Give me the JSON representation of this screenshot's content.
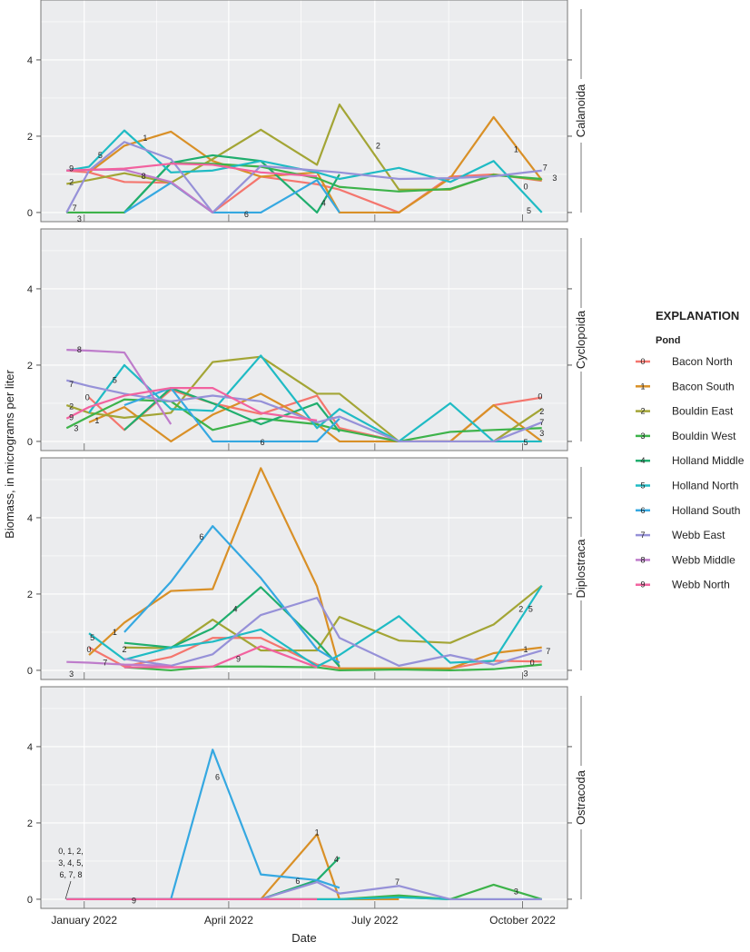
{
  "chart_data": {
    "type": "line",
    "xlabel": "Date",
    "ylabel": "Biomass, in micrograms per liter",
    "x_ticks": [
      {
        "date": "2022-01-01",
        "label": "January 2022"
      },
      {
        "date": "2022-04-01",
        "label": "April 2022"
      },
      {
        "date": "2022-07-01",
        "label": "July 2022"
      },
      {
        "date": "2022-10-01",
        "label": "October 2022"
      }
    ],
    "xlim": [
      "2021-12-05",
      "2022-10-29"
    ],
    "ylim": [
      -0.24,
      5.57
    ],
    "y_ticks": [
      0,
      2,
      4
    ],
    "grid": true,
    "legend": {
      "title": "EXPLANATION",
      "subtitle": "Pond",
      "placement": "right"
    },
    "dates": [
      "2021-12-21",
      "2022-01-04",
      "2022-01-26",
      "2022-02-24",
      "2022-03-22",
      "2022-04-21",
      "2022-05-26",
      "2022-06-09",
      "2022-07-16",
      "2022-08-17",
      "2022-09-13",
      "2022-10-13"
    ],
    "series": [
      {
        "id": "0",
        "name": "Bacon North",
        "color": "#F4766E"
      },
      {
        "id": "1",
        "name": "Bacon South",
        "color": "#D99027"
      },
      {
        "id": "2",
        "name": "Bouldin East",
        "color": "#A3A535"
      },
      {
        "id": "3",
        "name": "Bouldin West",
        "color": "#3DB34A"
      },
      {
        "id": "4",
        "name": "Holland Middle",
        "color": "#20AE6E"
      },
      {
        "id": "5",
        "name": "Holland North",
        "color": "#1FBBC4"
      },
      {
        "id": "6",
        "name": "Holland South",
        "color": "#35A8E1"
      },
      {
        "id": "7",
        "name": "Webb East",
        "color": "#9691D8"
      },
      {
        "id": "8",
        "name": "Webb Middle",
        "color": "#BE7CCB"
      },
      {
        "id": "9",
        "name": "Webb North",
        "color": "#F2629F"
      }
    ],
    "panels": [
      {
        "name": "Calanoida",
        "values": [
          [
            1.1,
            1.05,
            0.8,
            0.78,
            0,
            0.94,
            0.74,
            0.6,
            0,
            0.94,
            1.0,
            0.83
          ],
          [
            null,
            1.05,
            1.75,
            2.12,
            1.35,
            0.94,
            1.05,
            0,
            0,
            0.9,
            2.5,
            0.85
          ],
          [
            0.75,
            0.85,
            1.03,
            0.78,
            1.4,
            2.17,
            1.25,
            2.83,
            0.6,
            0.6,
            1.0,
            0.85
          ],
          [
            0,
            0,
            0,
            1.3,
            1.28,
            1.2,
            0.9,
            0.67,
            0.55,
            0.62,
            0.98,
            0.88
          ],
          [
            null,
            null,
            0,
            1.3,
            1.5,
            1.35,
            0,
            1.0,
            null,
            null,
            null,
            null
          ],
          [
            1.1,
            1.2,
            2.15,
            1.05,
            1.1,
            1.35,
            1.05,
            0.88,
            1.17,
            0.8,
            1.35,
            0
          ],
          [
            null,
            null,
            0,
            0.78,
            0,
            0,
            0.85,
            0,
            null,
            null,
            null,
            null
          ],
          [
            0,
            1.1,
            1.85,
            1.4,
            0,
            1.22,
            1.1,
            1.05,
            0.88,
            0.9,
            0.95,
            1.1
          ],
          [
            1.1,
            1.12,
            1.12,
            0.8,
            0,
            null,
            null,
            null,
            null,
            null,
            null,
            null
          ],
          [
            1.1,
            1.12,
            1.15,
            1.28,
            1.25,
            1.05,
            0.95,
            null,
            null,
            null,
            null,
            null
          ]
        ],
        "labels": [
          {
            "s": "9",
            "d": "2021-12-24",
            "v": 1.15
          },
          {
            "s": "2",
            "d": "2021-12-24",
            "v": 0.8
          },
          {
            "s": "7",
            "d": "2021-12-26",
            "v": 0.12
          },
          {
            "s": "3",
            "d": "2021-12-29",
            "v": -0.06
          },
          {
            "s": "5",
            "d": "2022-01-11",
            "v": 1.5
          },
          {
            "s": "1",
            "d": "2022-02-08",
            "v": 1.95
          },
          {
            "s": "8",
            "d": "2022-02-07",
            "v": 0.95
          },
          {
            "s": "6",
            "d": "2022-04-12",
            "v": -0.05
          },
          {
            "s": "4",
            "d": "2022-05-30",
            "v": 0.25
          },
          {
            "s": "2",
            "d": "2022-07-03",
            "v": 1.75
          },
          {
            "s": "1",
            "d": "2022-09-27",
            "v": 1.65
          },
          {
            "s": "0",
            "d": "2022-10-03",
            "v": 0.68
          },
          {
            "s": "5",
            "d": "2022-10-05",
            "v": 0.05
          },
          {
            "s": "7",
            "d": "2022-10-15",
            "v": 1.18
          },
          {
            "s": "3",
            "d": "2022-10-21",
            "v": 0.9
          }
        ]
      },
      {
        "name": "Cyclopoida",
        "values": [
          [
            null,
            1.15,
            0.3,
            1.35,
            1.0,
            0.72,
            1.2,
            0.35,
            0,
            0,
            0.95,
            1.15
          ],
          [
            null,
            0.5,
            0.9,
            0,
            0.7,
            1.25,
            0.45,
            0,
            0,
            0,
            0.95,
            0
          ],
          [
            0.95,
            0.75,
            0.62,
            0.75,
            2.08,
            2.22,
            1.25,
            1.25,
            0,
            0,
            0,
            0.85
          ],
          [
            0.35,
            0.65,
            1.1,
            1.05,
            0.3,
            0.6,
            0.45,
            0.3,
            0,
            0.25,
            0.3,
            0.35
          ],
          [
            null,
            null,
            0.3,
            1.4,
            1.0,
            0.45,
            1.0,
            0.25,
            null,
            null,
            null,
            null
          ],
          [
            null,
            0.75,
            2.0,
            0.85,
            0.8,
            2.25,
            0.35,
            0.85,
            0,
            1.0,
            0,
            0
          ],
          [
            null,
            null,
            0.95,
            1.4,
            0,
            0,
            0,
            0.6,
            null,
            null,
            null,
            null
          ],
          [
            1.6,
            1.45,
            1.25,
            1.05,
            1.2,
            1.05,
            0.5,
            0.65,
            0,
            0,
            0,
            0.5
          ],
          [
            2.4,
            2.38,
            2.33,
            0.45,
            null,
            null,
            null,
            null,
            null,
            null,
            null,
            null
          ],
          [
            0.6,
            0.9,
            1.2,
            1.4,
            1.4,
            0.75,
            0.55,
            null,
            null,
            null,
            null,
            null
          ]
        ],
        "labels": [
          {
            "s": "8",
            "d": "2021-12-29",
            "v": 2.4
          },
          {
            "s": "7",
            "d": "2021-12-24",
            "v": 1.5
          },
          {
            "s": "0",
            "d": "2022-01-03",
            "v": 1.15
          },
          {
            "s": "5",
            "d": "2022-01-20",
            "v": 1.6
          },
          {
            "s": "2",
            "d": "2021-12-24",
            "v": 0.92
          },
          {
            "s": "9",
            "d": "2021-12-24",
            "v": 0.68
          },
          {
            "s": "1",
            "d": "2022-01-09",
            "v": 0.55
          },
          {
            "s": "3",
            "d": "2021-12-27",
            "v": 0.42
          },
          {
            "s": "6",
            "d": "2022-04-22",
            "v": -0.02
          },
          {
            "s": "0",
            "d": "2022-10-12",
            "v": 1.18
          },
          {
            "s": "2",
            "d": "2022-10-13",
            "v": 0.78
          },
          {
            "s": "7",
            "d": "2022-10-13",
            "v": 0.5
          },
          {
            "s": "3",
            "d": "2022-10-13",
            "v": 0.35
          },
          {
            "s": "5",
            "d": "2022-10-03",
            "v": -0.02
          }
        ]
      },
      {
        "name": "Diplostraca",
        "values": [
          [
            null,
            0.6,
            0.1,
            0.35,
            0.85,
            0.85,
            0.15,
            0.05,
            0.05,
            0.05,
            0.25,
            0.23
          ],
          [
            null,
            0.4,
            1.25,
            2.08,
            2.13,
            5.3,
            2.2,
            0.05,
            0.05,
            0.05,
            0.45,
            0.6
          ],
          [
            0.25,
            null,
            0.6,
            0.58,
            1.33,
            0.52,
            0.52,
            1.4,
            0.78,
            0.72,
            1.2,
            2.22
          ],
          [
            0,
            null,
            0.08,
            0,
            0.1,
            0.1,
            0.08,
            0,
            0.02,
            0,
            0.03,
            0.15
          ],
          [
            null,
            null,
            0.72,
            0.6,
            1.1,
            2.18,
            0.75,
            0.1,
            null,
            null,
            null,
            null
          ],
          [
            null,
            0.97,
            0.28,
            0.6,
            0.75,
            1.07,
            0.1,
            0.4,
            1.42,
            0.2,
            0.25,
            2.22
          ],
          [
            null,
            null,
            1.0,
            2.32,
            3.78,
            2.42,
            0.55,
            0.2,
            null,
            null,
            null,
            null
          ],
          [
            0.2,
            null,
            0.3,
            0.12,
            0.42,
            1.45,
            1.9,
            0.85,
            0.12,
            0.4,
            0.15,
            0.52
          ],
          [
            0.22,
            0.2,
            0.15,
            0.12,
            null,
            null,
            null,
            null,
            null,
            null,
            null,
            null
          ],
          [
            0.28,
            null,
            0.08,
            0.08,
            0.1,
            0.63,
            0.08,
            null,
            null,
            null,
            null,
            null
          ]
        ],
        "labels": [
          {
            "s": "6",
            "d": "2022-03-15",
            "v": 3.5
          },
          {
            "s": "4",
            "d": "2022-04-05",
            "v": 1.6
          },
          {
            "s": "1",
            "d": "2022-01-20",
            "v": 1.0
          },
          {
            "s": "5",
            "d": "2022-01-06",
            "v": 0.85
          },
          {
            "s": "0",
            "d": "2022-01-04",
            "v": 0.55
          },
          {
            "s": "2",
            "d": "2022-01-26",
            "v": 0.55
          },
          {
            "s": "7",
            "d": "2022-01-14",
            "v": 0.2
          },
          {
            "s": "9",
            "d": "2022-04-07",
            "v": 0.3
          },
          {
            "s": "3",
            "d": "2021-12-24",
            "v": -0.1
          },
          {
            "s": "2",
            "d": "2022-09-30",
            "v": 1.6
          },
          {
            "s": "5",
            "d": "2022-10-06",
            "v": 1.6
          },
          {
            "s": "1",
            "d": "2022-10-03",
            "v": 0.55
          },
          {
            "s": "7",
            "d": "2022-10-17",
            "v": 0.5
          },
          {
            "s": "0",
            "d": "2022-10-07",
            "v": 0.2
          },
          {
            "s": "3",
            "d": "2022-10-03",
            "v": 0.05
          }
        ]
      },
      {
        "name": "Ostracoda",
        "values": [
          [
            0,
            0,
            0,
            0,
            0,
            0,
            0,
            null,
            null,
            null,
            null,
            null
          ],
          [
            0,
            0,
            0,
            0,
            0,
            0,
            1.7,
            0,
            0,
            null,
            null,
            null
          ],
          [
            0,
            0,
            0,
            0,
            0,
            0,
            0,
            0,
            0.05,
            0,
            null,
            null
          ],
          [
            0,
            0,
            0,
            0,
            0,
            0,
            0,
            0,
            0.1,
            0,
            0.38,
            0
          ],
          [
            0,
            0,
            0,
            0,
            0,
            0,
            0.5,
            1.1,
            null,
            null,
            null,
            null
          ],
          [
            0,
            0,
            0,
            0,
            0,
            0,
            0,
            0,
            0.05,
            0,
            0,
            0
          ],
          [
            0,
            0,
            0,
            0,
            3.92,
            0.65,
            0.5,
            0.3,
            null,
            null,
            null,
            null
          ],
          [
            0,
            0,
            0,
            0,
            0,
            0,
            0.45,
            0.15,
            0.35,
            0,
            0,
            0
          ],
          [
            0,
            0,
            0,
            0,
            null,
            null,
            null,
            null,
            null,
            null,
            null,
            null
          ],
          [
            0,
            0,
            0,
            0,
            0,
            0,
            0,
            null,
            null,
            null,
            null,
            null
          ]
        ],
        "labels": [
          {
            "s": "6",
            "d": "2022-03-25",
            "v": 3.2
          },
          {
            "s": "1",
            "d": "2022-05-26",
            "v": 1.75
          },
          {
            "s": "4",
            "d": "2022-06-07",
            "v": 1.05
          },
          {
            "s": "6",
            "d": "2022-05-14",
            "v": 0.48
          },
          {
            "s": "7",
            "d": "2022-07-15",
            "v": 0.45
          },
          {
            "s": "3",
            "d": "2022-09-27",
            "v": 0.2
          },
          {
            "s": "9",
            "d": "2022-02-01",
            "v": -0.04
          }
        ],
        "annotation": [
          "0, 1, 2,",
          "3, 4, 5,",
          "6, 7, 8"
        ]
      }
    ]
  }
}
